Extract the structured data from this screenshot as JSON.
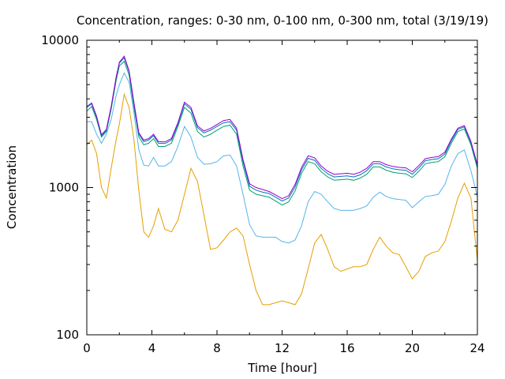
{
  "chart_data": {
    "type": "line",
    "title": "Concentration, ranges: 0-30 nm, 0-100 nm, 0-300 nm, total (3/19/19)",
    "xlabel": "Time [hour]",
    "ylabel": "Concentration",
    "xlim": [
      0,
      24
    ],
    "ylim": [
      100,
      10000
    ],
    "yscale": "log",
    "xticks": [
      "0",
      "4",
      "8",
      "12",
      "16",
      "20",
      "24"
    ],
    "xtick_values": [
      0,
      4,
      8,
      12,
      16,
      20,
      24
    ],
    "yticks": [
      "100",
      "1000",
      "10000"
    ],
    "ytick_values": [
      100,
      1000,
      10000
    ],
    "grid": false,
    "x": [
      0,
      0.3,
      0.6,
      0.9,
      1.2,
      1.5,
      1.8,
      2.0,
      2.3,
      2.6,
      2.9,
      3.2,
      3.5,
      3.8,
      4.1,
      4.4,
      4.8,
      5.2,
      5.6,
      6.0,
      6.4,
      6.8,
      7.2,
      7.6,
      8.0,
      8.4,
      8.8,
      9.2,
      9.6,
      10.0,
      10.4,
      10.8,
      11.2,
      11.6,
      12.0,
      12.4,
      12.8,
      13.2,
      13.6,
      14.0,
      14.4,
      14.8,
      15.2,
      15.6,
      16.0,
      16.4,
      16.8,
      17.2,
      17.6,
      18.0,
      18.4,
      18.8,
      19.2,
      19.6,
      20.0,
      20.4,
      20.8,
      21.2,
      21.6,
      22.0,
      22.4,
      22.8,
      23.2,
      23.6,
      24.0
    ],
    "series": [
      {
        "color": "#e69f00",
        "values": [
          1950,
          2100,
          1700,
          1000,
          850,
          1350,
          2100,
          2700,
          4300,
          3500,
          2100,
          950,
          500,
          460,
          550,
          720,
          520,
          500,
          600,
          900,
          1350,
          1100,
          650,
          380,
          390,
          440,
          500,
          530,
          470,
          300,
          200,
          160,
          160,
          165,
          170,
          165,
          160,
          190,
          280,
          420,
          480,
          380,
          290,
          270,
          280,
          290,
          290,
          300,
          380,
          460,
          400,
          360,
          350,
          290,
          240,
          270,
          340,
          360,
          370,
          430,
          590,
          850,
          1070,
          850,
          320
        ]
      },
      {
        "color": "#56b4e9",
        "values": [
          2800,
          2800,
          2300,
          2000,
          2300,
          2900,
          4200,
          5000,
          6000,
          5200,
          3200,
          1800,
          1420,
          1400,
          1600,
          1400,
          1400,
          1500,
          1900,
          2600,
          2200,
          1600,
          1440,
          1450,
          1500,
          1640,
          1660,
          1400,
          900,
          560,
          470,
          460,
          460,
          460,
          430,
          420,
          440,
          550,
          800,
          940,
          900,
          800,
          720,
          700,
          700,
          700,
          720,
          750,
          860,
          930,
          870,
          840,
          830,
          820,
          730,
          800,
          870,
          880,
          900,
          1050,
          1400,
          1700,
          1800,
          1300,
          870
        ]
      },
      {
        "color": "#009e73",
        "values": [
          3300,
          3550,
          2900,
          2200,
          2400,
          3400,
          5300,
          6700,
          7200,
          5800,
          3500,
          2200,
          1950,
          2000,
          2150,
          1900,
          1900,
          2000,
          2600,
          3500,
          3200,
          2400,
          2200,
          2300,
          2450,
          2600,
          2650,
          2300,
          1400,
          960,
          900,
          880,
          860,
          810,
          760,
          800,
          950,
          1250,
          1500,
          1450,
          1280,
          1180,
          1120,
          1130,
          1140,
          1120,
          1160,
          1230,
          1380,
          1380,
          1310,
          1270,
          1250,
          1240,
          1170,
          1290,
          1450,
          1480,
          1500,
          1620,
          2000,
          2400,
          2500,
          1950,
          1350
        ]
      },
      {
        "color": "#0072b2",
        "values": [
          3500,
          3700,
          3000,
          2250,
          2450,
          3500,
          5500,
          7000,
          7600,
          6100,
          3700,
          2300,
          2050,
          2100,
          2250,
          2000,
          1990,
          2100,
          2700,
          3700,
          3400,
          2550,
          2350,
          2450,
          2600,
          2750,
          2800,
          2450,
          1500,
          1020,
          960,
          930,
          910,
          860,
          810,
          850,
          1010,
          1320,
          1580,
          1530,
          1350,
          1240,
          1180,
          1190,
          1200,
          1180,
          1220,
          1300,
          1450,
          1450,
          1380,
          1340,
          1320,
          1310,
          1230,
          1360,
          1520,
          1550,
          1570,
          1690,
          2080,
          2480,
          2580,
          2020,
          1400
        ]
      },
      {
        "color": "#9400d3",
        "values": [
          3550,
          3750,
          3050,
          2280,
          2480,
          3550,
          5600,
          7100,
          7800,
          6200,
          3750,
          2350,
          2100,
          2150,
          2300,
          2050,
          2040,
          2150,
          2760,
          3800,
          3500,
          2620,
          2420,
          2520,
          2680,
          2850,
          2900,
          2530,
          1550,
          1060,
          1000,
          970,
          940,
          890,
          840,
          880,
          1050,
          1370,
          1640,
          1590,
          1400,
          1290,
          1230,
          1240,
          1250,
          1230,
          1270,
          1350,
          1500,
          1500,
          1430,
          1390,
          1370,
          1360,
          1280,
          1410,
          1570,
          1600,
          1620,
          1740,
          2130,
          2530,
          2630,
          2060,
          1430
        ]
      }
    ]
  }
}
